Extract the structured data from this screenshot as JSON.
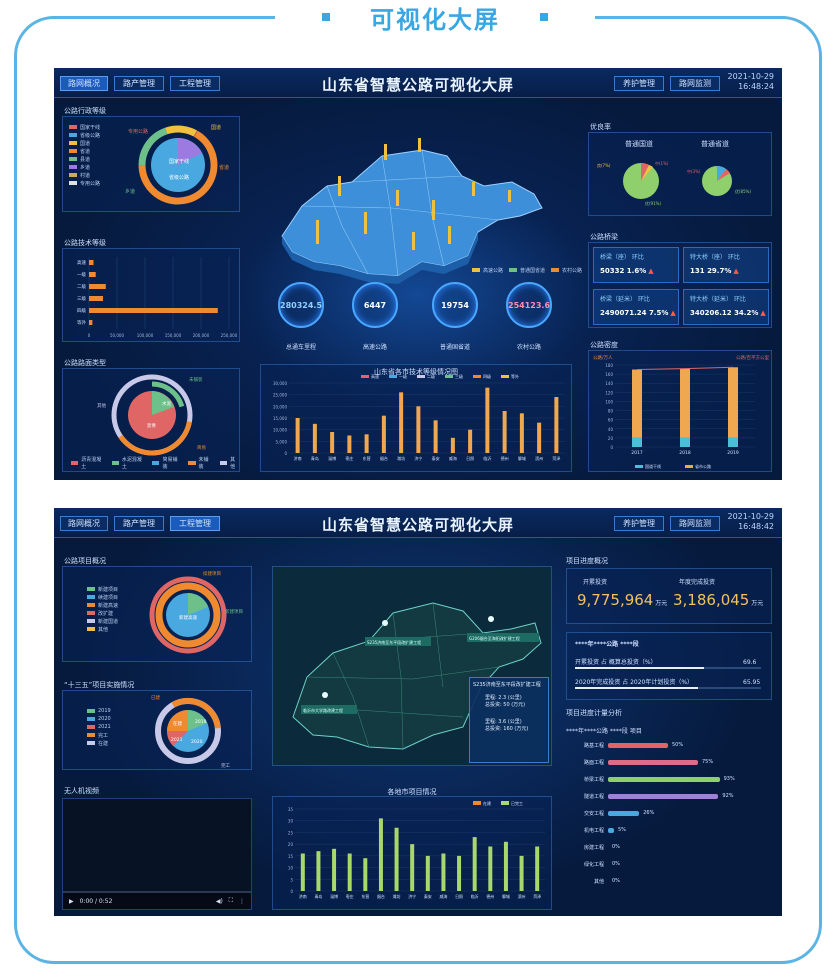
{
  "frame": {
    "title": "可视化大屏"
  },
  "screen1": {
    "tabs": [
      "路网概况",
      "路产管理",
      "工程管理"
    ],
    "right_tabs": [
      "养护管理",
      "路网监测"
    ],
    "title": "山东省智慧公路可视化大屏",
    "date": "2021-10-29",
    "time": "16:48:24",
    "admin_grade": {
      "title": "公路行政等级",
      "legend": [
        "国家干线",
        "省级公路",
        "国道",
        "省道",
        "县道",
        "乡道",
        "村道",
        "专用公路"
      ],
      "colors": [
        "#e06666",
        "#4aa8e0",
        "#f0c040",
        "#f08a30",
        "#6ec08a",
        "#9b7be0",
        "#d0a860",
        "#e0e0e0"
      ],
      "ring_labels": {
        "a": "专用公路",
        "b": "国道",
        "c": "村道",
        "d": "省道",
        "e": "乡道",
        "center_a": "国家干线",
        "center_b": "省级公路"
      }
    },
    "tech_grade": {
      "title": "公路技术等级",
      "categories": [
        "高速",
        "一级",
        "二级",
        "三级",
        "四级",
        "等外"
      ],
      "values": [
        8000,
        12000,
        30000,
        25000,
        230000,
        6000
      ],
      "ticks": [
        "0",
        "50,000",
        "100,000",
        "150,000",
        "200,000",
        "250,000"
      ]
    },
    "surface": {
      "title": "公路路面类型",
      "legend": [
        "沥青混凝土",
        "水泥混凝土",
        "简易铺装",
        "未铺装",
        "其他"
      ],
      "colors": [
        "#e06666",
        "#6ec08a",
        "#4aa8e0",
        "#f08a30",
        "#c8c8e8"
      ],
      "labels": {
        "a": "水泥",
        "b": "沥青",
        "c": "未铺装",
        "d": "简易",
        "e": "其他"
      }
    },
    "map_legend": [
      "高速公路",
      "普通国省道",
      "农村公路"
    ],
    "stats": [
      {
        "value": "280324.5",
        "label": "总通车里程"
      },
      {
        "value": "6447",
        "label": "高速公路"
      },
      {
        "value": "19754",
        "label": "普通国省道"
      },
      {
        "value": "254123.6",
        "label": "农村公路"
      }
    ],
    "city_chart": {
      "title": "山东省各市技术等级情况图",
      "legend": [
        "高速",
        "一级",
        "二级",
        "三级",
        "四级",
        "等外"
      ],
      "y_ticks": [
        "30,000",
        "25,000",
        "20,000",
        "15,000",
        "10,000",
        "5,000",
        "0"
      ],
      "cities": [
        "济南",
        "青岛",
        "淄博",
        "枣庄",
        "东营",
        "烟台",
        "潍坊",
        "济宁",
        "泰安",
        "威海",
        "日照",
        "临沂",
        "德州",
        "聊城",
        "滨州",
        "菏泽"
      ],
      "values": [
        15000,
        12500,
        9000,
        7500,
        8000,
        16000,
        26000,
        20000,
        14000,
        6500,
        10000,
        28000,
        18000,
        17000,
        13000,
        24000
      ]
    },
    "excellent": {
      "title": "优良率",
      "pie1_title": "普通国道",
      "pie2_title": "普通省道",
      "pie1_labels": [
        "优(91%)",
        "良(7%)",
        "中(1%)",
        "差(1%)",
        "次(0%)"
      ],
      "pie2_labels": [
        "优(85%)",
        "良(10%)",
        "中(3%)",
        "差(2%)"
      ]
    },
    "bridges": {
      "title": "公路桥梁",
      "items": [
        {
          "name": "桥梁（座）",
          "sub": "环比",
          "value": "50332",
          "pct": "1.6%"
        },
        {
          "name": "特大桥（座）",
          "sub": "环比",
          "value": "131",
          "pct": "29.7%"
        },
        {
          "name": "桥梁（延米）",
          "sub": "环比",
          "value": "2490071.24",
          "pct": "7.5%"
        },
        {
          "name": "特大桥（延米）",
          "sub": "环比",
          "value": "340206.12",
          "pct": "34.2%"
        }
      ]
    },
    "density": {
      "title": "公路密度",
      "left_unit": "公路/万人",
      "right_unit": "公路/百平方公里",
      "years": [
        "2017",
        "2018",
        "2019"
      ],
      "values_a": [
        170,
        172,
        175
      ],
      "values_b": [
        20,
        20,
        20
      ],
      "y_ticks": [
        "180",
        "160",
        "140",
        "120",
        "100",
        "80",
        "60",
        "40",
        "20",
        "0"
      ],
      "legend": [
        "国道干线",
        "省市公路"
      ]
    }
  },
  "screen2": {
    "tabs": [
      "路网概况",
      "路产管理",
      "工程管理"
    ],
    "right_tabs": [
      "养护管理",
      "路网监测"
    ],
    "title": "山东省智慧公路可视化大屏",
    "date": "2021-10-29",
    "time": "16:48:42",
    "project_overview": {
      "title": "公路项目概况",
      "legend": [
        "新建项目",
        "续建项目",
        "新建高速",
        "改扩建",
        "新建国道",
        "其他"
      ],
      "colors": [
        "#6ec08a",
        "#4aa8e0",
        "#f08a30",
        "#e06666",
        "#c8c8e8",
        "#f0c040"
      ],
      "labels": {
        "a": "新建项目",
        "b": "续建项目",
        "c": "改扩建",
        "center": "新建高速"
      }
    },
    "five_year": {
      "title": "“十三五”项目实施情况",
      "legend": [
        "2019",
        "2020",
        "2021",
        "完工",
        "在建"
      ],
      "colors": [
        "#6ec08a",
        "#4aa8e0",
        "#e06666",
        "#f08a30",
        "#c8c8e8"
      ],
      "labels": {
        "a": "已建",
        "b": "在建",
        "c": "2019",
        "d": "2020",
        "e": "2021",
        "f": "完工"
      }
    },
    "map_labels": [
      "S235济南至东平段改扩建工程",
      "G206烟台至海阳改扩建工程",
      "临沂市大学路改建工程"
    ],
    "map_popup": {
      "title": "S235济南至东平段改扩建工程",
      "row1a": "里程: 2.3 (公里)",
      "row1b": "总投资: 50 (万元)",
      "row2a": "里程: 3.6 (公里)",
      "row2b": "总投资: 160 (万元)"
    },
    "drone": {
      "title": "无人机视频",
      "time": "0:00 / 0:52"
    },
    "city_projects": {
      "title": "各地市项目情况",
      "legend": [
        "在建",
        "已完工"
      ],
      "y_ticks": [
        "35",
        "30",
        "25",
        "20",
        "15",
        "10",
        "5",
        "0"
      ],
      "cities": [
        "济南",
        "青岛",
        "淄博",
        "枣庄",
        "东营",
        "烟台",
        "潍坊",
        "济宁",
        "泰安",
        "威海",
        "日照",
        "临沂",
        "德州",
        "聊城",
        "滨州",
        "菏泽"
      ],
      "values": [
        16,
        17,
        18,
        16,
        14,
        31,
        27,
        20,
        15,
        16,
        15,
        23,
        19,
        21,
        15,
        19
      ]
    },
    "progress": {
      "title": "项目进度概况",
      "k1_label": "开累投资",
      "k1_value": "9,775,964",
      "k1_unit": "万元",
      "k2_label": "年度完成投资",
      "k2_value": "3,186,045",
      "k2_unit": "万元",
      "highway": "****年****公路 ****段",
      "r1_label": "开累投资 占 概算总投资（%）",
      "r1_value": "69.6",
      "r1_pct": 69.6,
      "r2_label": "2020年完成投资 占 2020年计划投资（%）",
      "r2_value": "65.95",
      "r2_pct": 65.95
    },
    "plan": {
      "title": "项目进度计量分析",
      "subtitle": "****年****公路 ****段 项目",
      "items": [
        {
          "name": "路基工程",
          "value": "50%",
          "pct": 50,
          "color": "#e06666"
        },
        {
          "name": "路面工程",
          "value": "75%",
          "pct": 75,
          "color": "#e06a8a"
        },
        {
          "name": "桥梁工程",
          "value": "93%",
          "pct": 93,
          "color": "#8fd06c"
        },
        {
          "name": "隧道工程",
          "value": "92%",
          "pct": 92,
          "color": "#a07fd8"
        },
        {
          "name": "交安工程",
          "value": "26%",
          "pct": 26,
          "color": "#4aa8e0"
        },
        {
          "name": "机电工程",
          "value": "5%",
          "pct": 5,
          "color": "#4aa8e0"
        },
        {
          "name": "房建工程",
          "value": "0%",
          "pct": 0,
          "color": "#4aa8e0"
        },
        {
          "name": "绿化工程",
          "value": "0%",
          "pct": 0,
          "color": "#4aa8e0"
        },
        {
          "name": "其他",
          "value": "0%",
          "pct": 0,
          "color": "#4aa8e0"
        }
      ]
    }
  }
}
